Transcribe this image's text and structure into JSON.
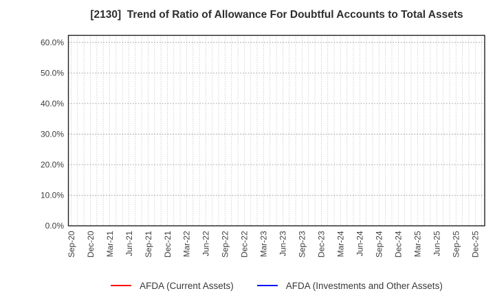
{
  "title": "[2130]  Trend of Ratio of Allowance For Doubtful Accounts to Total Assets",
  "chart_data": {
    "type": "line",
    "title": "[2130]  Trend of Ratio of Allowance For Doubtful Accounts to Total Assets",
    "xlabel": "",
    "ylabel": "",
    "grid": true,
    "legend_position": "bottom",
    "ylim": [
      0,
      62.3
    ],
    "y_ticks": [
      0,
      10,
      20,
      30,
      40,
      50,
      60
    ],
    "y_tick_labels": [
      "0.0%",
      "10.0%",
      "20.0%",
      "30.0%",
      "40.0%",
      "50.0%",
      "60.0%"
    ],
    "x_tick_labels": [
      "Sep-20",
      "Dec-20",
      "Mar-21",
      "Jun-21",
      "Sep-21",
      "Dec-21",
      "Mar-22",
      "Jun-22",
      "Sep-22",
      "Dec-22",
      "Mar-23",
      "Jun-23",
      "Sep-23",
      "Dec-23",
      "Mar-24",
      "Jun-24",
      "Sep-24",
      "Dec-24",
      "Mar-25",
      "Jun-25",
      "Sep-25",
      "Dec-25"
    ],
    "months_between_labels": 3,
    "series": [
      {
        "name": "AFDA (Current Assets)",
        "color": "#ff0000",
        "values": []
      },
      {
        "name": "AFDA (Investments and Other Assets)",
        "color": "#0000ff",
        "values": []
      }
    ]
  },
  "colors": {
    "background": "#ffffff",
    "axis_border": "#1f1f1f",
    "grid_vertical": "#ababab",
    "grid_horizontal": "#8f8f8f",
    "tick_text": "#3d3d3d",
    "title_text": "#2e2e2e",
    "legend_text": "#383838"
  }
}
